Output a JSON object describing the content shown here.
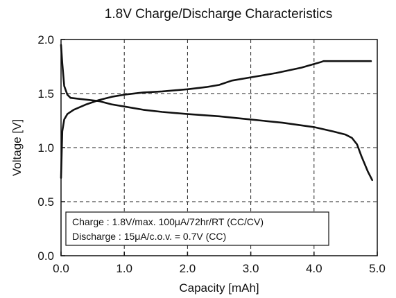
{
  "chart_data": {
    "type": "line",
    "title": "1.8V Charge/Discharge Characteristics",
    "xlabel": "Capacity [mAh]",
    "ylabel": "Voltage [V]",
    "xlim": [
      0.0,
      5.0
    ],
    "ylim": [
      0.0,
      2.0
    ],
    "xticks": [
      "0.0",
      "1.0",
      "2.0",
      "3.0",
      "4.0",
      "5.0"
    ],
    "yticks": [
      "0.0",
      "0.5",
      "1.0",
      "1.5",
      "2.0"
    ],
    "grid": true,
    "annotation": {
      "lines": [
        "Charge : 1.8V/max. 100μA/72hr/RT (CC/CV)",
        "Discharge : 15μA/c.o.v. = 0.7V (CC)"
      ],
      "placement": "bottom-left"
    },
    "series": [
      {
        "key": "charge",
        "color": "#111111",
        "points": [
          [
            0.0,
            0.72
          ],
          [
            0.02,
            1.15
          ],
          [
            0.05,
            1.26
          ],
          [
            0.1,
            1.31
          ],
          [
            0.2,
            1.35
          ],
          [
            0.4,
            1.4
          ],
          [
            0.6,
            1.44
          ],
          [
            0.8,
            1.47
          ],
          [
            1.0,
            1.49
          ],
          [
            1.3,
            1.51
          ],
          [
            1.6,
            1.52
          ],
          [
            2.0,
            1.54
          ],
          [
            2.3,
            1.56
          ],
          [
            2.5,
            1.58
          ],
          [
            2.7,
            1.62
          ],
          [
            3.0,
            1.65
          ],
          [
            3.4,
            1.69
          ],
          [
            3.8,
            1.74
          ],
          [
            4.1,
            1.79
          ],
          [
            4.15,
            1.8
          ],
          [
            4.5,
            1.8
          ],
          [
            4.9,
            1.8
          ]
        ]
      },
      {
        "key": "discharge",
        "color": "#111111",
        "points": [
          [
            0.0,
            1.95
          ],
          [
            0.02,
            1.78
          ],
          [
            0.05,
            1.57
          ],
          [
            0.1,
            1.49
          ],
          [
            0.15,
            1.46
          ],
          [
            0.3,
            1.45
          ],
          [
            0.6,
            1.43
          ],
          [
            0.8,
            1.4
          ],
          [
            1.0,
            1.38
          ],
          [
            1.3,
            1.35
          ],
          [
            1.6,
            1.33
          ],
          [
            2.0,
            1.31
          ],
          [
            2.5,
            1.29
          ],
          [
            3.0,
            1.26
          ],
          [
            3.5,
            1.23
          ],
          [
            4.0,
            1.19
          ],
          [
            4.3,
            1.15
          ],
          [
            4.5,
            1.12
          ],
          [
            4.6,
            1.09
          ],
          [
            4.68,
            1.03
          ],
          [
            4.75,
            0.92
          ],
          [
            4.85,
            0.78
          ],
          [
            4.92,
            0.7
          ]
        ]
      }
    ]
  }
}
